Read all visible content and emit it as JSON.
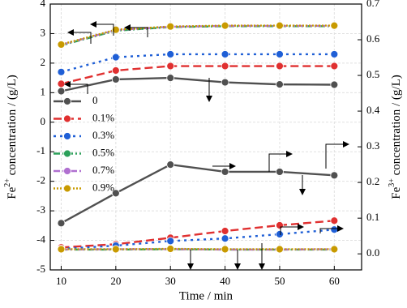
{
  "chart_data": {
    "type": "line",
    "x_label": "Time / min",
    "y_label": {
      "prefix": "Fe",
      "sup": "2+",
      "suffix": " concentration / (g/L)"
    },
    "y2_label": {
      "prefix": "Fe",
      "sup": "3+",
      "suffix": " concentration / (g/L)"
    },
    "x": [
      10,
      20,
      30,
      40,
      50,
      60
    ],
    "xlim": [
      8,
      65
    ],
    "xticks": [
      10,
      20,
      30,
      40,
      50,
      60
    ],
    "ylim": [
      -5,
      4
    ],
    "yticks": [
      -5,
      -4,
      -3,
      -2,
      -1,
      0,
      1,
      2,
      3,
      4
    ],
    "y2lim": [
      -0.045,
      0.7
    ],
    "y2ticks": [
      {
        "value": 0,
        "label": "0.0"
      },
      0.1,
      0.2,
      0.3,
      0.4,
      0.5,
      0.6,
      0.7
    ],
    "grid": true,
    "legend": "upper left",
    "series": [
      {
        "name": "0",
        "color": "#505050",
        "values": [
          1.05,
          1.45,
          1.5,
          1.35,
          1.28,
          1.27
        ],
        "y2_values": [
          0.086,
          0.17,
          0.25,
          0.23,
          0.23,
          0.22
        ]
      },
      {
        "name": "0.1%",
        "color": "#e03030",
        "values": [
          1.3,
          1.75,
          1.9,
          1.9,
          1.9,
          1.9
        ],
        "y2_values": [
          0.018,
          0.027,
          0.045,
          0.064,
          0.08,
          0.093
        ]
      },
      {
        "name": "0.3%",
        "color": "#1f5fd6",
        "values": [
          1.7,
          2.2,
          2.3,
          2.3,
          2.3,
          2.3
        ],
        "y2_values": [
          0.014,
          0.023,
          0.036,
          0.043,
          0.055,
          0.068
        ]
      },
      {
        "name": "0.5%",
        "color": "#2ca05a",
        "values": [
          2.6,
          3.1,
          3.22,
          3.25,
          3.25,
          3.25
        ],
        "y2_values": [
          0.012,
          0.012,
          0.013,
          0.012,
          0.012,
          0.012
        ]
      },
      {
        "name": "0.7%",
        "color": "#b070d0",
        "values": [
          2.62,
          3.12,
          3.23,
          3.26,
          3.26,
          3.26
        ],
        "y2_values": [
          0.012,
          0.013,
          0.013,
          0.012,
          0.012,
          0.013
        ]
      },
      {
        "name": "0.9%",
        "color": "#c89a00",
        "values": [
          2.63,
          3.13,
          3.24,
          3.27,
          3.27,
          3.27
        ],
        "y2_values": [
          0.013,
          0.013,
          0.014,
          0.013,
          0.013,
          0.013
        ]
      }
    ]
  }
}
